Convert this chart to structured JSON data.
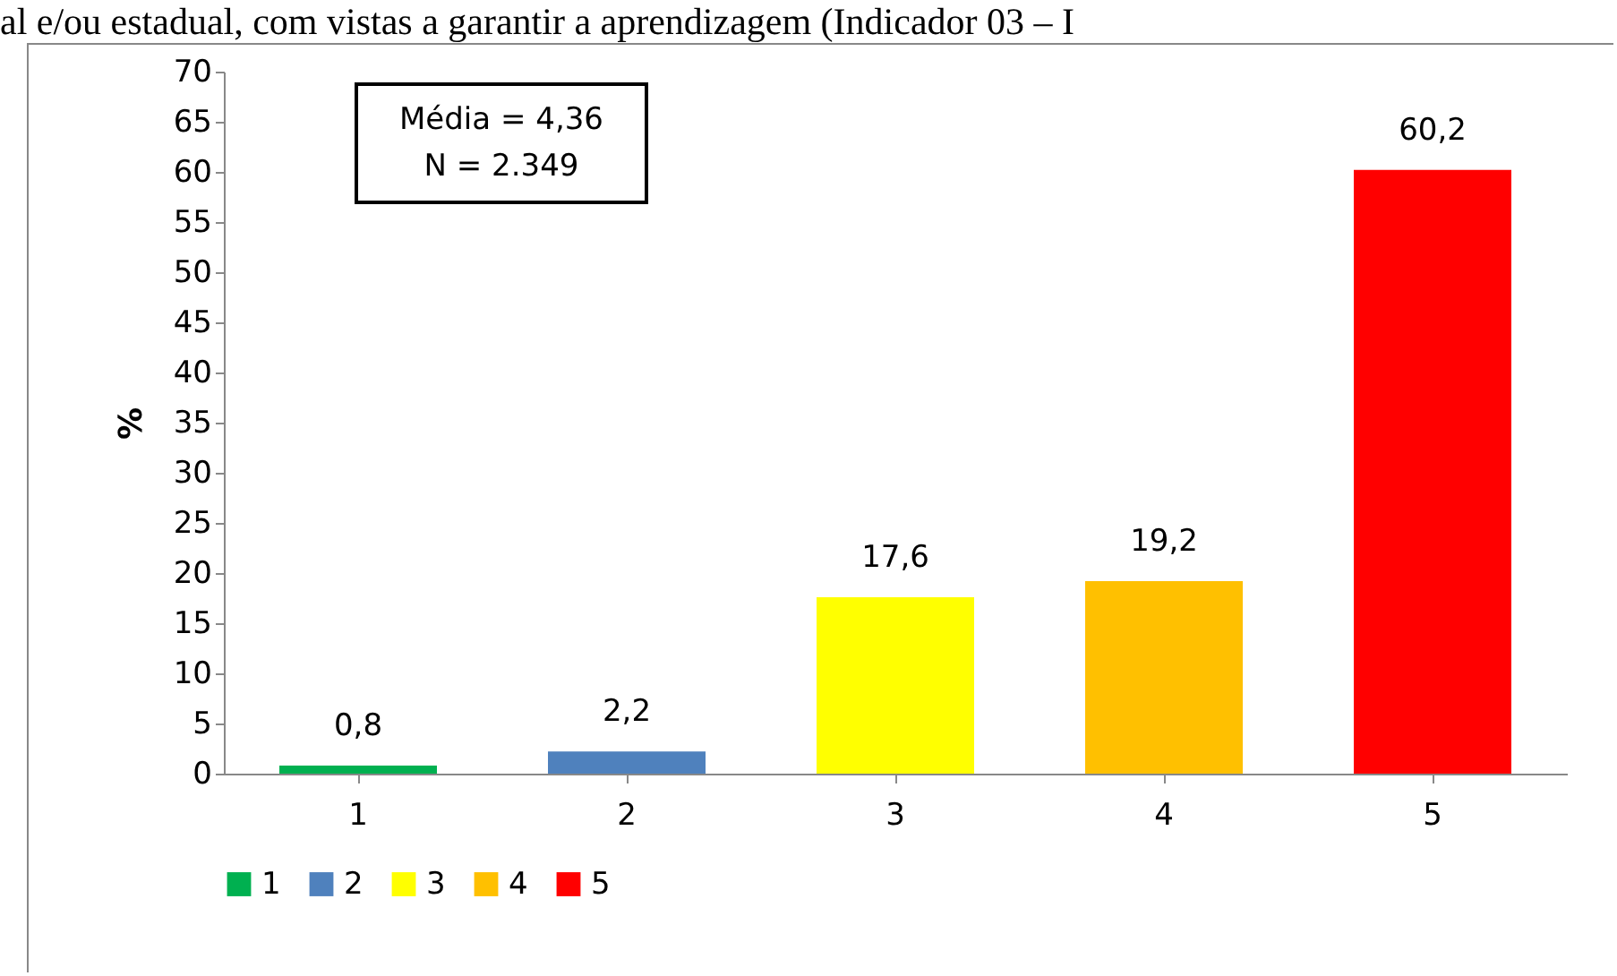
{
  "chart_data": {
    "type": "bar",
    "title": "al e/ou estadual, com vistas a garantir a aprendizagem (Indicador 03 – I",
    "ylabel": "%",
    "categories": [
      "1",
      "2",
      "3",
      "4",
      "5"
    ],
    "series": [
      {
        "name": "1",
        "color": "#00b050",
        "values": [
          0.8,
          null,
          null,
          null,
          null
        ],
        "value_labels": [
          "0,8",
          null,
          null,
          null,
          null
        ]
      },
      {
        "name": "2",
        "color": "#4f81bd",
        "values": [
          null,
          2.2,
          null,
          null,
          null
        ],
        "value_labels": [
          null,
          "2,2",
          null,
          null,
          null
        ]
      },
      {
        "name": "3",
        "color": "#ffff00",
        "values": [
          null,
          null,
          17.6,
          null,
          null
        ],
        "value_labels": [
          null,
          null,
          "17,6",
          null,
          null
        ]
      },
      {
        "name": "4",
        "color": "#ffc000",
        "values": [
          null,
          null,
          null,
          19.2,
          null
        ],
        "value_labels": [
          null,
          null,
          null,
          "19,2",
          null
        ]
      },
      {
        "name": "5",
        "color": "#ff0000",
        "values": [
          null,
          null,
          null,
          null,
          60.2
        ],
        "value_labels": [
          null,
          null,
          null,
          null,
          "60,2"
        ]
      }
    ],
    "ylim": [
      0,
      70
    ],
    "yticks": [
      0,
      5,
      10,
      15,
      20,
      25,
      30,
      35,
      40,
      45,
      50,
      55,
      60,
      65,
      70
    ],
    "legend": "bottom",
    "annotations": [
      "Média = 4,36",
      "N = 2.349"
    ]
  }
}
